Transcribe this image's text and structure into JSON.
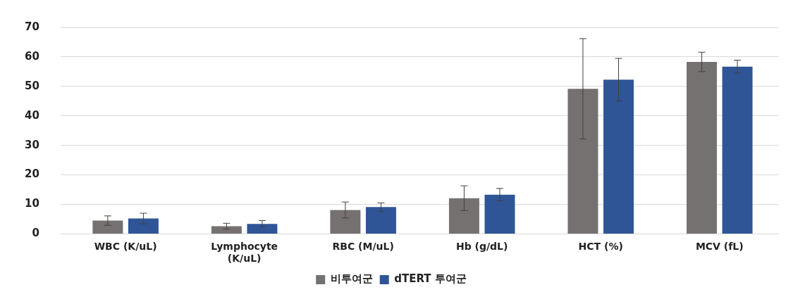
{
  "chart_data": {
    "type": "bar",
    "categories": [
      "WBC (K/uL)",
      "Lymphocyte (K/uL)",
      "RBC (M/uL)",
      "Hb (g/dL)",
      "HCT (%)",
      "MCV (fL)"
    ],
    "series": [
      {
        "name": "비투여군",
        "color": "#767171",
        "values": [
          4.5,
          2.6,
          8.1,
          12.1,
          49.2,
          58.3
        ],
        "errors": [
          1.6,
          1.0,
          2.7,
          4.2,
          17,
          3.3
        ]
      },
      {
        "name": "dTERT 투여군",
        "color": "#2f5597",
        "values": [
          5.2,
          3.4,
          9.1,
          13.3,
          52.3,
          56.7
        ],
        "errors": [
          1.8,
          1.1,
          1.4,
          2.1,
          7.2,
          2.2
        ]
      }
    ],
    "ylim": [
      0,
      70
    ],
    "yticks": [
      0,
      10,
      20,
      30,
      40,
      50,
      60,
      70
    ],
    "grid": "y",
    "legend": "bottom"
  }
}
